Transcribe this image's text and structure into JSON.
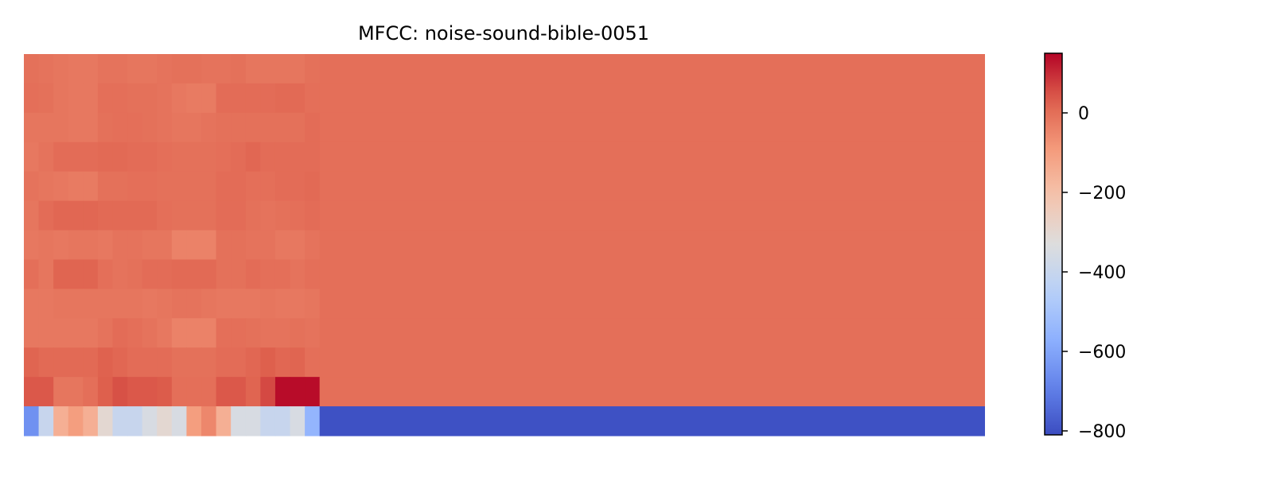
{
  "chart_data": {
    "type": "heatmap",
    "title": "MFCC: noise-sound-bible-0051",
    "xlabel": "",
    "ylabel": "",
    "rows": 13,
    "cols": 65,
    "active_cols": 20,
    "fill_value": 0,
    "last_row_fill_value": -800,
    "active_values": [
      [
        -5,
        -10,
        -15,
        -20,
        -20,
        -10,
        -10,
        -15,
        -15,
        -10,
        -5,
        -5,
        -10,
        -10,
        -5,
        -15,
        -15,
        -15,
        -15,
        -5
      ],
      [
        0,
        -5,
        -15,
        -20,
        -20,
        0,
        0,
        -5,
        -5,
        -10,
        -20,
        -25,
        -25,
        5,
        5,
        5,
        5,
        10,
        10,
        0
      ],
      [
        -15,
        -15,
        -15,
        -20,
        -20,
        -5,
        0,
        0,
        -5,
        -10,
        -15,
        -15,
        -10,
        -5,
        -5,
        -5,
        -5,
        -5,
        -5,
        5
      ],
      [
        -20,
        -10,
        5,
        5,
        5,
        10,
        10,
        5,
        5,
        0,
        -5,
        -5,
        -5,
        0,
        5,
        15,
        5,
        5,
        5,
        5
      ],
      [
        -10,
        -15,
        -20,
        -25,
        -25,
        -5,
        -5,
        0,
        0,
        -5,
        -5,
        -5,
        -5,
        5,
        5,
        0,
        0,
        5,
        5,
        10
      ],
      [
        -15,
        5,
        15,
        15,
        15,
        10,
        10,
        10,
        10,
        0,
        -5,
        -5,
        -5,
        5,
        5,
        -5,
        -10,
        -5,
        0,
        5
      ],
      [
        -20,
        -15,
        -20,
        -15,
        -15,
        -20,
        -10,
        -10,
        -15,
        -15,
        -40,
        -40,
        -40,
        -5,
        -5,
        -10,
        -10,
        -20,
        -20,
        -10
      ],
      [
        0,
        -15,
        20,
        20,
        20,
        0,
        -10,
        -5,
        5,
        5,
        10,
        10,
        10,
        -5,
        -5,
        5,
        0,
        0,
        -10,
        0
      ],
      [
        -20,
        -20,
        -15,
        -15,
        -15,
        -15,
        -15,
        -15,
        -20,
        -15,
        -10,
        -10,
        -15,
        -20,
        -20,
        -20,
        -15,
        -20,
        -20,
        -15
      ],
      [
        -20,
        -20,
        -20,
        -20,
        -20,
        -10,
        5,
        0,
        -10,
        -20,
        -40,
        -40,
        -40,
        0,
        0,
        -5,
        -10,
        -10,
        -5,
        -10
      ],
      [
        20,
        10,
        10,
        10,
        10,
        25,
        15,
        5,
        5,
        5,
        -5,
        -5,
        -5,
        5,
        5,
        15,
        30,
        15,
        20,
        0
      ],
      [
        40,
        40,
        -15,
        -15,
        0,
        30,
        50,
        40,
        40,
        35,
        0,
        0,
        0,
        40,
        40,
        20,
        60,
        140,
        140,
        140
      ],
      [
        -650,
        -400,
        -150,
        -100,
        -150,
        -300,
        -400,
        -400,
        -350,
        -300,
        -350,
        -100,
        -50,
        -150,
        -350,
        -350,
        -400,
        -400,
        -350,
        -550
      ]
    ],
    "colorbar": {
      "colormap": "coolwarm",
      "vmin": -810,
      "vmax": 150,
      "ticks": [
        0,
        -200,
        -400,
        -600,
        -800
      ],
      "tick_labels": [
        "0",
        "−200",
        "−400",
        "−600",
        "−800"
      ]
    }
  }
}
